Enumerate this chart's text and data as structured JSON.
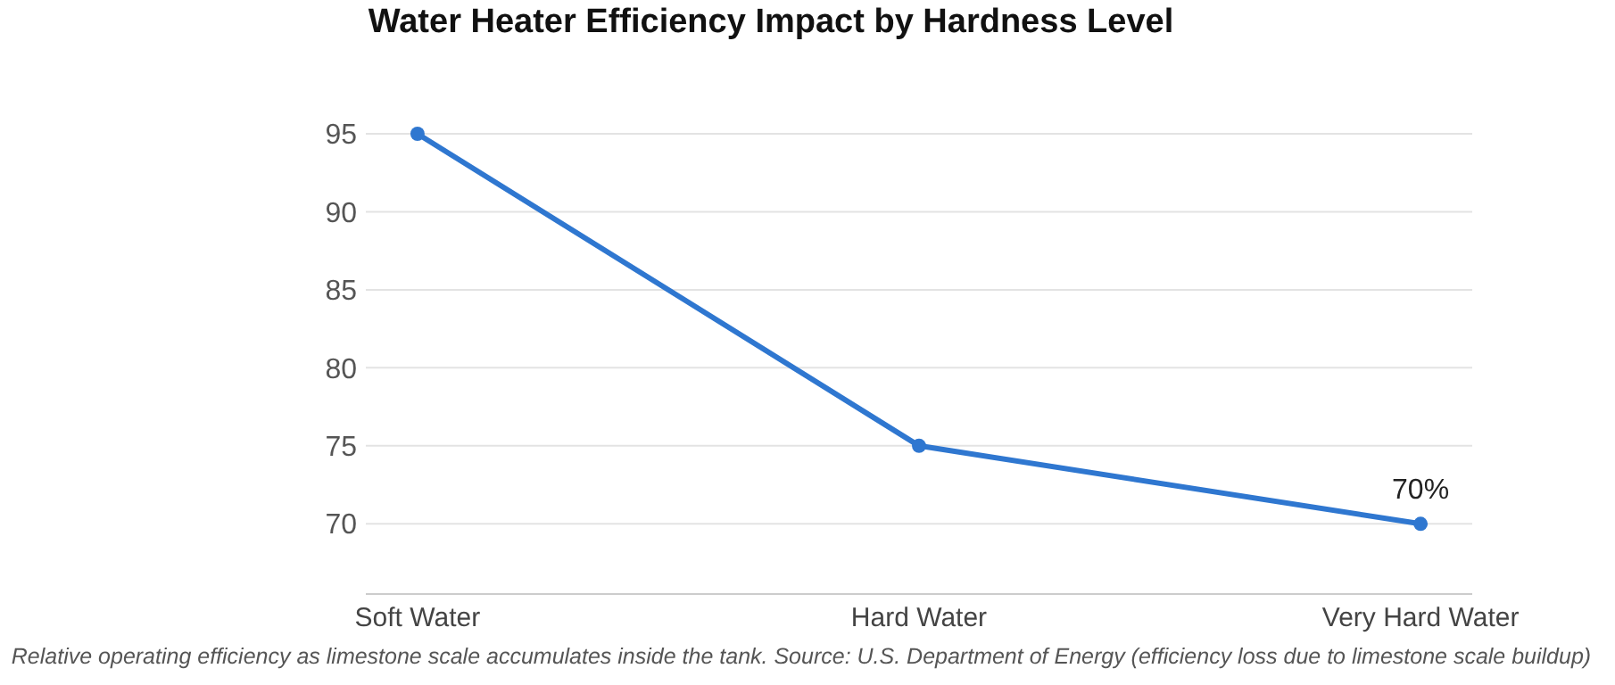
{
  "chart_data": {
    "type": "line",
    "title": "Water Heater Efficiency Impact by Hardness Level",
    "categories": [
      "Soft Water",
      "Hard Water",
      "Very Hard Water"
    ],
    "series": [
      {
        "color": "#2f77d0",
        "values": [
          95,
          75,
          70
        ],
        "value_labels": [
          null,
          null,
          "70%"
        ]
      }
    ],
    "ylim": [
      65.5,
      95
    ],
    "yticks": [
      70,
      75,
      80,
      85,
      90,
      95
    ],
    "grid": "y",
    "marker": "circle",
    "line_style": "solid",
    "annotations": [
      "Relative operating efficiency as limestone scale accumulates inside the tank. Source: U.S. Department of Energy (efficiency loss due to limestone scale buildup)"
    ]
  }
}
